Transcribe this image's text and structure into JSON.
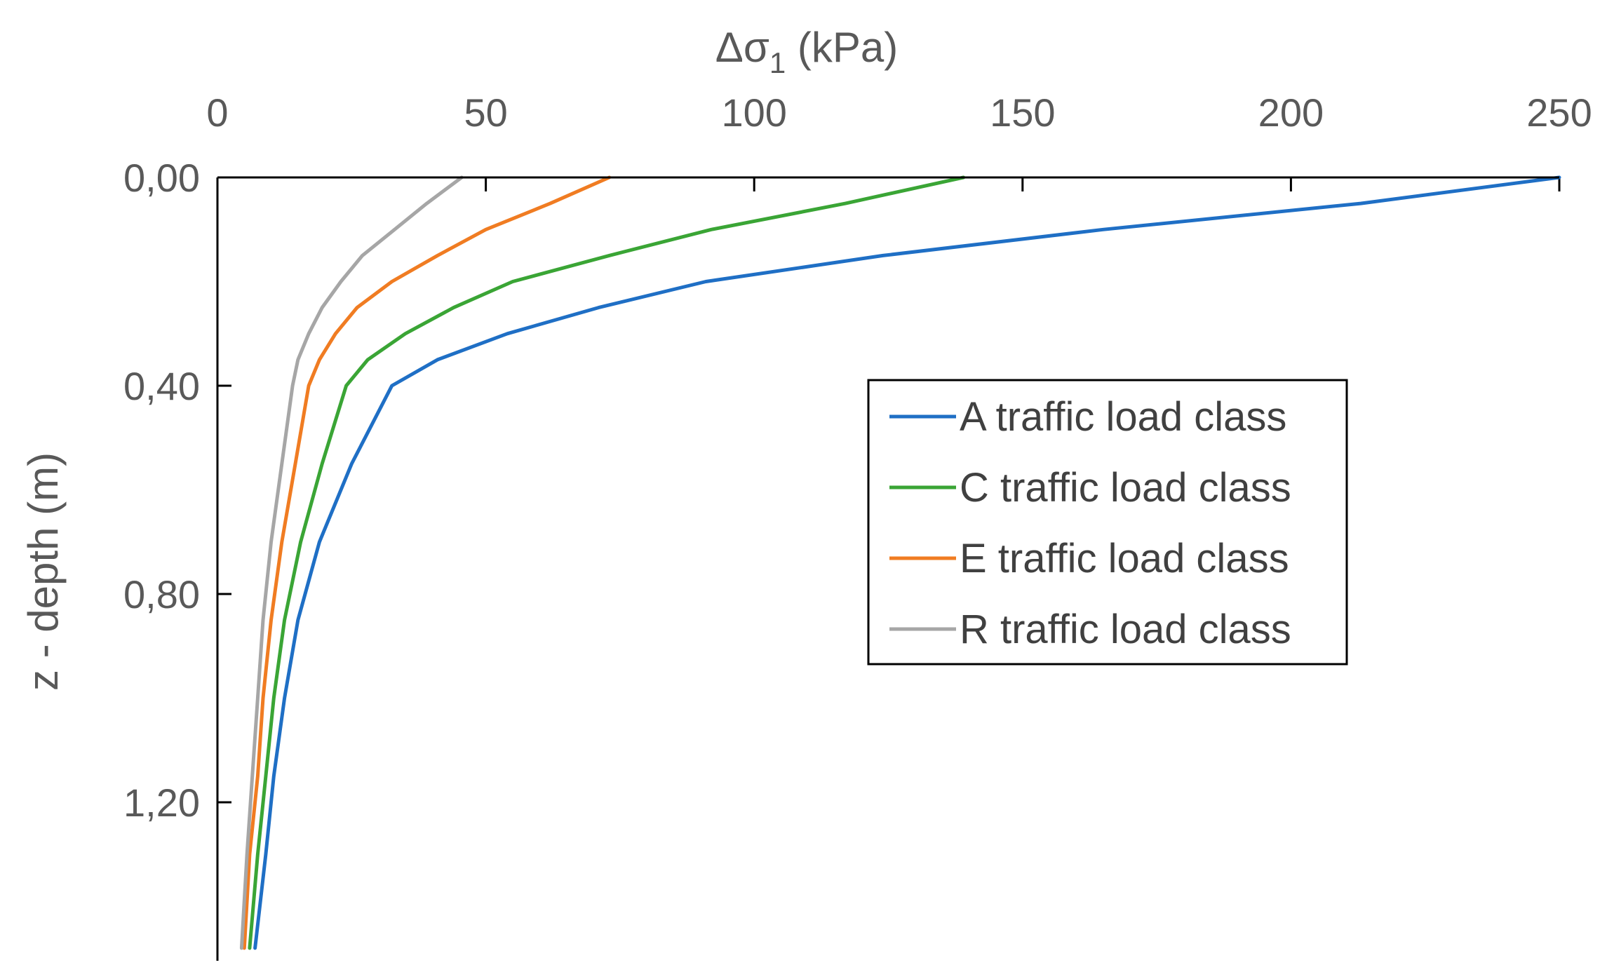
{
  "chart_data": {
    "type": "line",
    "x_axis": {
      "label_main": "Δσ",
      "label_sub": "1",
      "label_unit": " (kPa)",
      "position": "top",
      "min": 0,
      "max": 250,
      "ticks": [
        0,
        50,
        100,
        150,
        200,
        250
      ],
      "tick_labels": [
        "0",
        "50",
        "100",
        "150",
        "200",
        "250"
      ]
    },
    "y_axis": {
      "label": "z - depth (m)",
      "inverted": true,
      "min": 0,
      "max": 1.48,
      "ticks": [
        0,
        0.4,
        0.8,
        1.2
      ],
      "tick_labels": [
        "0,00",
        "0,40",
        "0,80",
        "1,20"
      ]
    },
    "grid": false,
    "legend_position": "right-center",
    "series": [
      {
        "name": "A traffic load class",
        "color": "#1f6fc5",
        "points": [
          [
            250,
            0.0
          ],
          [
            213,
            0.05
          ],
          [
            165,
            0.1
          ],
          [
            124,
            0.15
          ],
          [
            91,
            0.2
          ],
          [
            71,
            0.25
          ],
          [
            54,
            0.3
          ],
          [
            41,
            0.35
          ],
          [
            32.5,
            0.4
          ],
          [
            25,
            0.55
          ],
          [
            19,
            0.7
          ],
          [
            15,
            0.85
          ],
          [
            12.5,
            1.0
          ],
          [
            10.5,
            1.15
          ],
          [
            9,
            1.3
          ],
          [
            7,
            1.48
          ]
        ]
      },
      {
        "name": "C traffic load class",
        "color": "#3aa535",
        "points": [
          [
            139,
            0.0
          ],
          [
            117,
            0.05
          ],
          [
            92,
            0.1
          ],
          [
            73,
            0.15
          ],
          [
            55,
            0.2
          ],
          [
            44,
            0.25
          ],
          [
            35,
            0.3
          ],
          [
            28,
            0.35
          ],
          [
            24,
            0.4
          ],
          [
            19.5,
            0.55
          ],
          [
            15.5,
            0.7
          ],
          [
            12.5,
            0.85
          ],
          [
            10.5,
            1.0
          ],
          [
            9,
            1.15
          ],
          [
            7.5,
            1.3
          ],
          [
            6,
            1.48
          ]
        ]
      },
      {
        "name": "E traffic load class",
        "color": "#f07c22",
        "points": [
          [
            73,
            0.0
          ],
          [
            62,
            0.05
          ],
          [
            50,
            0.1
          ],
          [
            41,
            0.15
          ],
          [
            32.5,
            0.2
          ],
          [
            26,
            0.25
          ],
          [
            22,
            0.3
          ],
          [
            19,
            0.35
          ],
          [
            17,
            0.4
          ],
          [
            14.5,
            0.55
          ],
          [
            12,
            0.7
          ],
          [
            10,
            0.85
          ],
          [
            8.5,
            1.0
          ],
          [
            7.5,
            1.15
          ],
          [
            6,
            1.3
          ],
          [
            5,
            1.48
          ]
        ]
      },
      {
        "name": "R traffic load class",
        "color": "#a6a6a6",
        "points": [
          [
            45.5,
            0.0
          ],
          [
            39,
            0.05
          ],
          [
            33,
            0.1
          ],
          [
            27,
            0.15
          ],
          [
            23,
            0.2
          ],
          [
            19.5,
            0.25
          ],
          [
            17,
            0.3
          ],
          [
            15,
            0.35
          ],
          [
            14,
            0.4
          ],
          [
            12,
            0.55
          ],
          [
            10,
            0.7
          ],
          [
            8.5,
            0.85
          ],
          [
            7.5,
            1.0
          ],
          [
            6.5,
            1.15
          ],
          [
            5.5,
            1.3
          ],
          [
            4.5,
            1.48
          ]
        ]
      }
    ]
  }
}
